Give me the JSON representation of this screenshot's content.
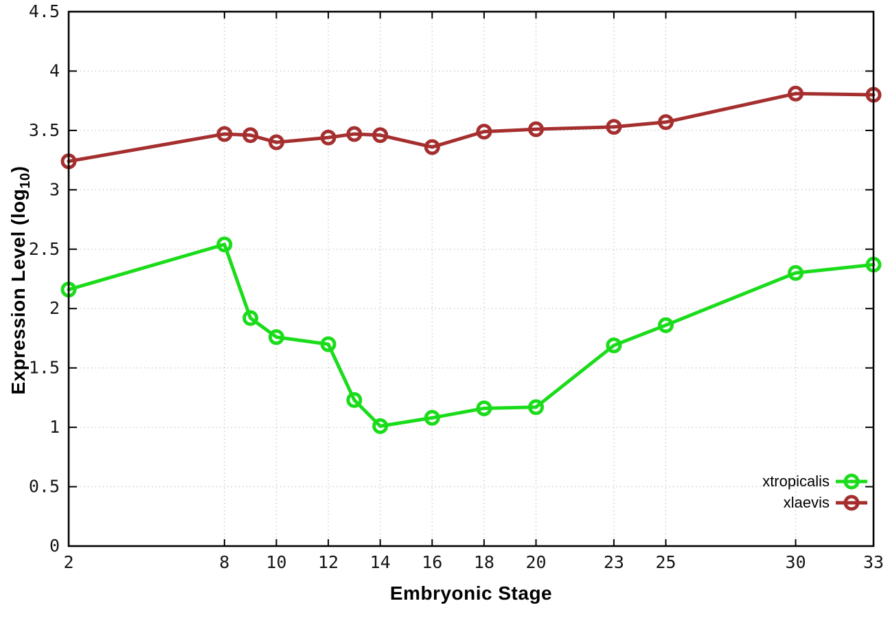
{
  "page": {
    "background_color": "#ffffff",
    "border_color": "#000000",
    "grid_color": "#c8c8c8"
  },
  "chart_data": {
    "type": "line",
    "title": "",
    "xlabel": "Embryonic Stage",
    "ylabel": "Expression Level (log10)",
    "ylabel_parts": {
      "prefix": "Expression Level (log",
      "sub": "10",
      "suffix": ")"
    },
    "x": [
      2,
      8,
      9,
      10,
      12,
      13,
      14,
      16,
      18,
      20,
      23,
      25,
      30,
      33
    ],
    "series": [
      {
        "name": "xtropicalis",
        "color": "#1adc1a",
        "values": [
          2.16,
          2.54,
          1.92,
          1.76,
          1.7,
          1.23,
          1.01,
          1.08,
          1.16,
          1.17,
          1.69,
          1.86,
          2.3,
          2.37
        ]
      },
      {
        "name": "xlaevis",
        "color": "#a52f2f",
        "values": [
          3.24,
          3.47,
          3.46,
          3.4,
          3.44,
          3.47,
          3.46,
          3.36,
          3.49,
          3.51,
          3.53,
          3.57,
          3.81,
          3.8
        ]
      }
    ],
    "xlim": [
      2,
      33
    ],
    "ylim": [
      0,
      4.5
    ],
    "x_ticks": [
      2,
      8,
      10,
      12,
      14,
      16,
      18,
      20,
      23,
      25,
      30,
      33
    ],
    "x_tick_labels": [
      "2",
      "8",
      "10",
      "12",
      "14",
      "16",
      "18",
      "20",
      "23",
      "25",
      "30",
      "33"
    ],
    "y_ticks": [
      0,
      0.5,
      1,
      1.5,
      2,
      2.5,
      3,
      3.5,
      4,
      4.5
    ],
    "y_tick_labels": [
      "0",
      "0.5",
      "1",
      "1.5",
      "2",
      "2.5",
      "3",
      "3.5",
      "4",
      "4.5"
    ],
    "grid": true,
    "grid_style": "dotted",
    "marker": "open-circle",
    "line_width": 5,
    "legend_position": "bottom-right",
    "legend_border": false
  }
}
